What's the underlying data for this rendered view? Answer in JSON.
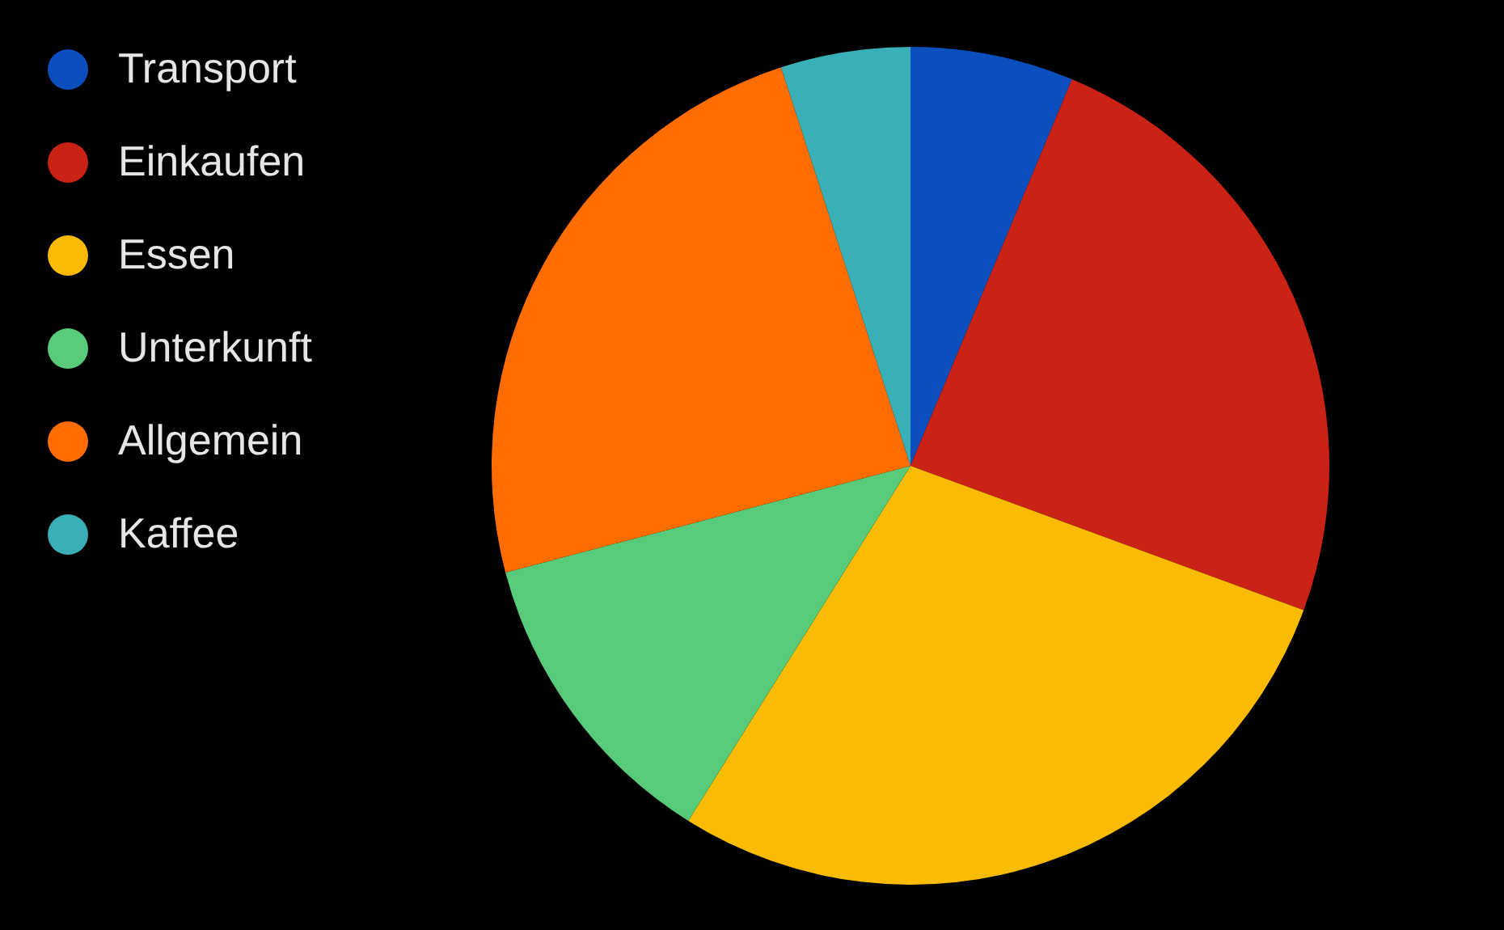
{
  "chart_data": {
    "type": "pie",
    "categories": [
      "Transport",
      "Einkaufen",
      "Essen",
      "Unterkunft",
      "Allgemein",
      "Kaffee"
    ],
    "values": [
      6.3,
      24.3,
      28.3,
      12.0,
      24.1,
      5.0
    ],
    "colors": [
      "#0b4fbf",
      "#cb2216",
      "#fabb05",
      "#57cb79",
      "#ff6d01",
      "#39b0b7"
    ],
    "legend": "top left"
  }
}
